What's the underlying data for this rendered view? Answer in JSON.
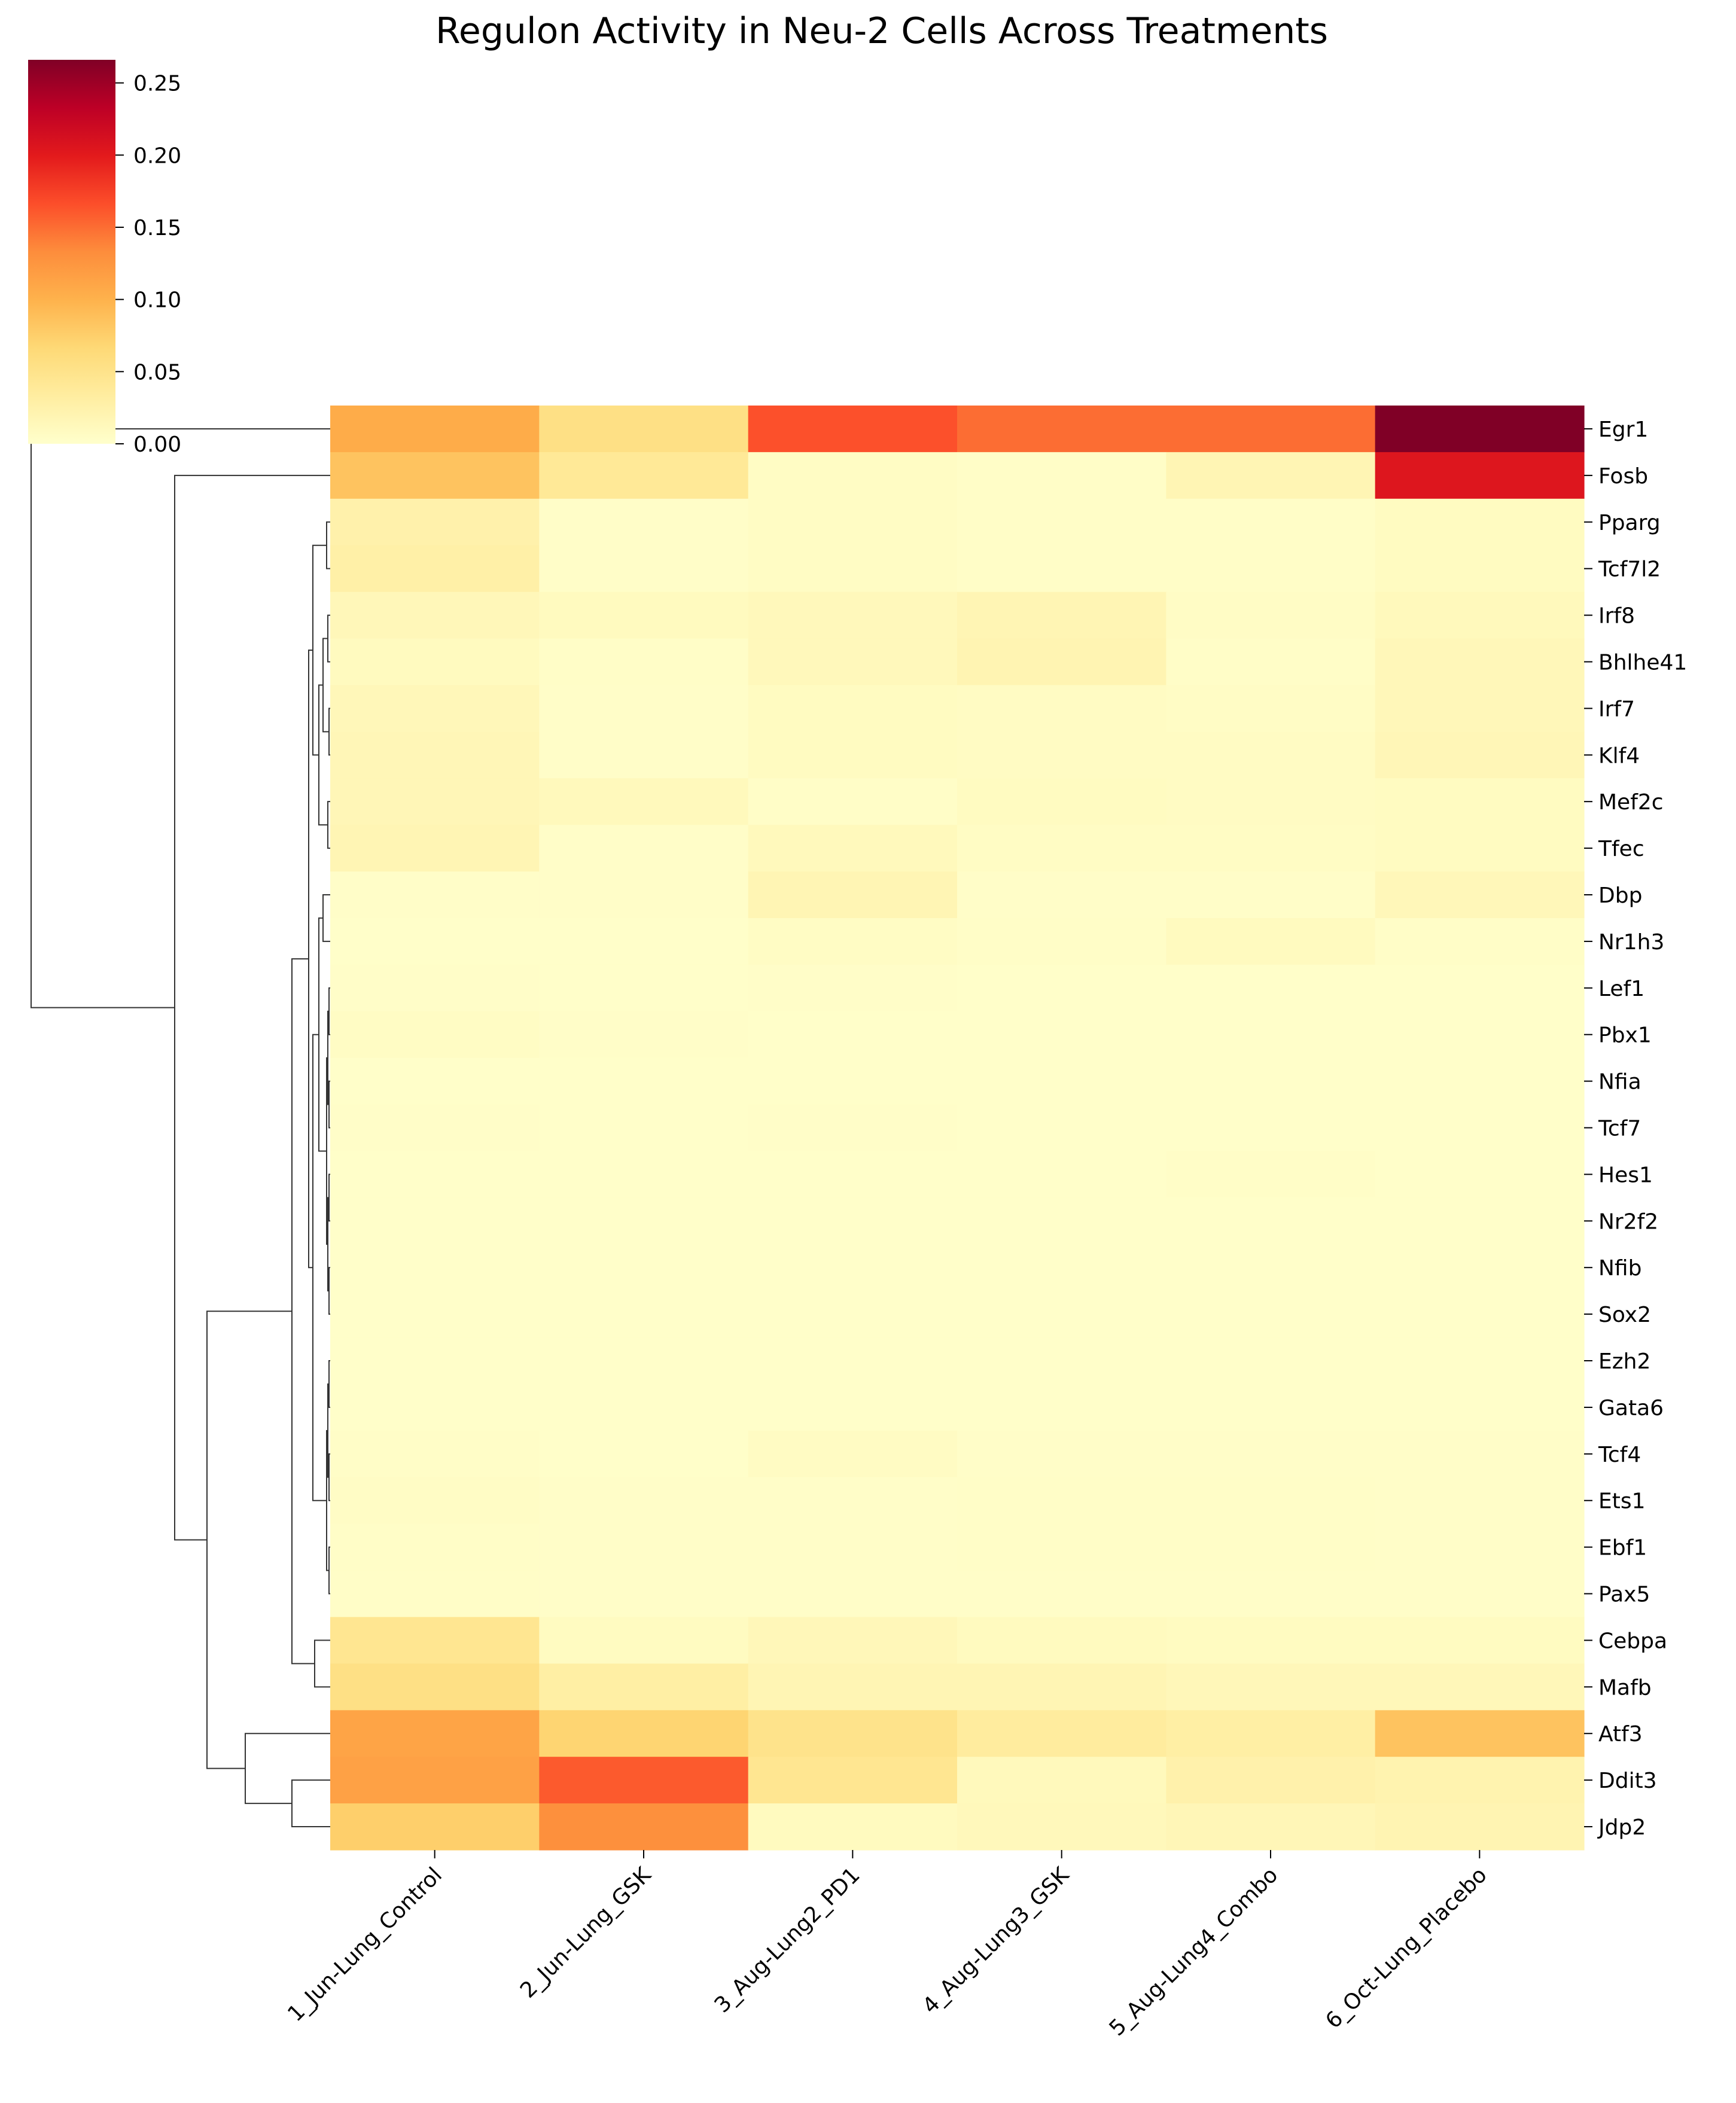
{
  "chart_data": {
    "type": "heatmap",
    "title": "Regulon Activity in Neu-2 Cells Across Treatments",
    "xlabel": "",
    "ylabel": "",
    "colormap": "YlOrRd",
    "vmin": 0.0,
    "vmax": 0.266,
    "colorbar": {
      "ticks": [
        0.0,
        0.05,
        0.1,
        0.15,
        0.2,
        0.25
      ],
      "tick_labels": [
        "0.00",
        "0.05",
        "0.10",
        "0.15",
        "0.20",
        "0.25"
      ],
      "placement": "top-left"
    },
    "columns": [
      "1_Jun-Lung_Control",
      "2_Jun-Lung_GSK",
      "3_Aug-Lung2_PD1",
      "4_Aug-Lung3_GSK",
      "5_Aug-Lung4_Combo",
      "6_Oct-Lung_Placebo"
    ],
    "rows": [
      "Egr1",
      "Fosb",
      "Pparg",
      "Tcf7l2",
      "Irf8",
      "Bhlhe41",
      "Irf7",
      "Klf4",
      "Mef2c",
      "Tfec",
      "Dbp",
      "Nr1h3",
      "Lef1",
      "Pbx1",
      "Nfia",
      "Tcf7",
      "Hes1",
      "Nr2f2",
      "Nfib",
      "Sox2",
      "Ezh2",
      "Gata6",
      "Tcf4",
      "Ets1",
      "Ebf1",
      "Pax5",
      "Cebpa",
      "Mafb",
      "Atf3",
      "Ddit3",
      "Jdp2"
    ],
    "values": [
      [
        0.105,
        0.055,
        0.165,
        0.15,
        0.15,
        0.266
      ],
      [
        0.085,
        0.04,
        0.006,
        0.004,
        0.018,
        0.205
      ],
      [
        0.025,
        0.003,
        0.006,
        0.004,
        0.004,
        0.008
      ],
      [
        0.028,
        0.003,
        0.006,
        0.004,
        0.004,
        0.008
      ],
      [
        0.014,
        0.01,
        0.013,
        0.018,
        0.005,
        0.012
      ],
      [
        0.01,
        0.004,
        0.013,
        0.02,
        0.004,
        0.014
      ],
      [
        0.014,
        0.003,
        0.008,
        0.007,
        0.005,
        0.014
      ],
      [
        0.016,
        0.003,
        0.008,
        0.007,
        0.007,
        0.016
      ],
      [
        0.016,
        0.012,
        0.004,
        0.008,
        0.007,
        0.008
      ],
      [
        0.018,
        0.003,
        0.012,
        0.006,
        0.006,
        0.008
      ],
      [
        0.003,
        0.003,
        0.018,
        0.003,
        0.003,
        0.014
      ],
      [
        0.002,
        0.002,
        0.006,
        0.004,
        0.01,
        0.004
      ],
      [
        0.003,
        0.002,
        0.003,
        0.002,
        0.002,
        0.002
      ],
      [
        0.006,
        0.003,
        0.002,
        0.002,
        0.002,
        0.002
      ],
      [
        0.002,
        0.002,
        0.002,
        0.002,
        0.002,
        0.002
      ],
      [
        0.003,
        0.002,
        0.003,
        0.002,
        0.002,
        0.002
      ],
      [
        0.002,
        0.002,
        0.002,
        0.002,
        0.004,
        0.002
      ],
      [
        0.002,
        0.002,
        0.002,
        0.002,
        0.002,
        0.002
      ],
      [
        0.002,
        0.002,
        0.002,
        0.002,
        0.002,
        0.002
      ],
      [
        0.002,
        0.002,
        0.002,
        0.002,
        0.002,
        0.002
      ],
      [
        0.002,
        0.002,
        0.002,
        0.002,
        0.002,
        0.002
      ],
      [
        0.002,
        0.002,
        0.002,
        0.002,
        0.002,
        0.002
      ],
      [
        0.004,
        0.002,
        0.007,
        0.003,
        0.003,
        0.003
      ],
      [
        0.005,
        0.003,
        0.003,
        0.004,
        0.004,
        0.003
      ],
      [
        0.004,
        0.003,
        0.003,
        0.004,
        0.004,
        0.003
      ],
      [
        0.004,
        0.003,
        0.003,
        0.003,
        0.003,
        0.003
      ],
      [
        0.045,
        0.008,
        0.014,
        0.01,
        0.008,
        0.008
      ],
      [
        0.055,
        0.03,
        0.018,
        0.018,
        0.014,
        0.014
      ],
      [
        0.112,
        0.07,
        0.05,
        0.035,
        0.03,
        0.085
      ],
      [
        0.115,
        0.16,
        0.045,
        0.012,
        0.025,
        0.022
      ],
      [
        0.075,
        0.13,
        0.01,
        0.013,
        0.016,
        0.02
      ]
    ]
  }
}
